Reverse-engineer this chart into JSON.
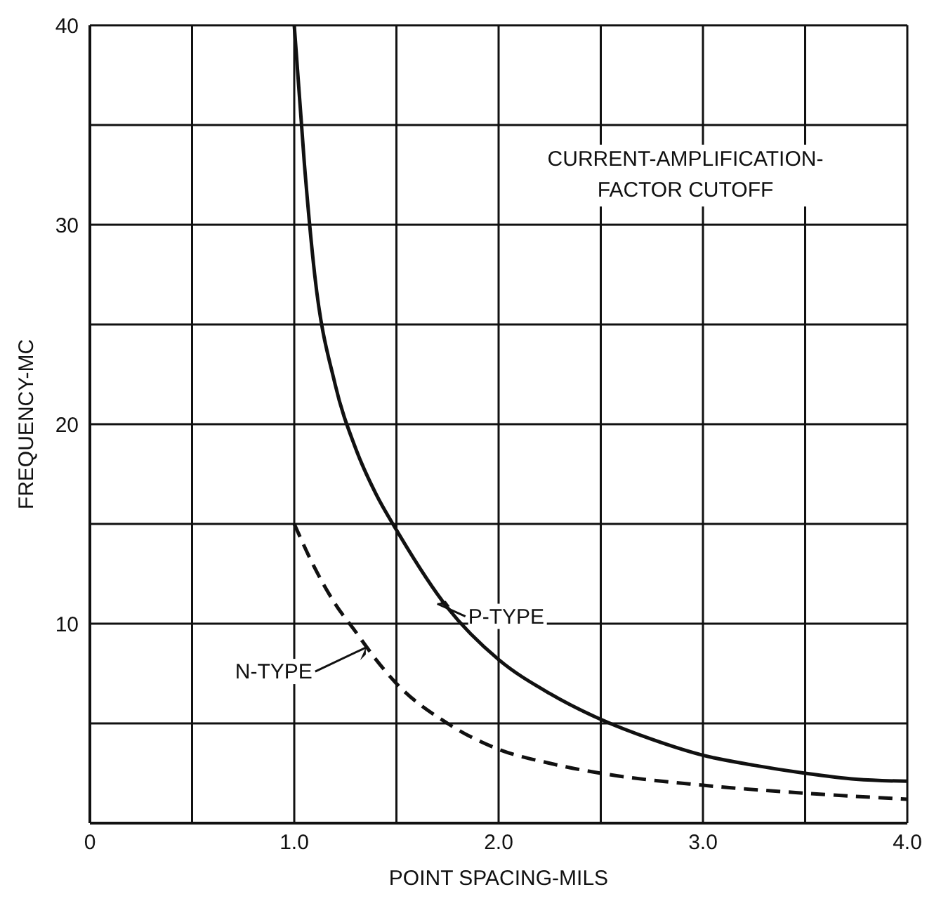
{
  "chart_data": {
    "type": "line",
    "xlabel": "POINT SPACING-MILS",
    "ylabel": "FREQUENCY-MC",
    "annotations": [
      "CURRENT-AMPLIFICATION-FACTOR CUTOFF",
      {
        "text": "P-TYPE",
        "x": 1.7,
        "y": 11
      },
      {
        "text": "N-TYPE",
        "x": 1.35,
        "y": 8.8
      }
    ],
    "series": [
      {
        "color": "#111111",
        "line_style": "solid",
        "x": [
          1.0,
          1.05,
          1.1,
          1.2,
          1.3,
          1.4,
          1.5,
          1.75,
          2.0,
          2.25,
          2.5,
          2.75,
          3.0,
          3.25,
          3.5,
          3.75,
          4.0
        ],
        "values": [
          40,
          33,
          27.5,
          22,
          18.8,
          16.5,
          14.7,
          10.8,
          8.2,
          6.5,
          5.2,
          4.2,
          3.4,
          2.9,
          2.5,
          2.2,
          2.1
        ]
      },
      {
        "color": "#111111",
        "line_style": "dashed",
        "x": [
          1.0,
          1.1,
          1.2,
          1.3,
          1.4,
          1.5,
          1.75,
          2.0,
          2.25,
          2.5,
          3.0,
          3.5,
          4.0
        ],
        "values": [
          15,
          12.8,
          11,
          9.6,
          8.2,
          7.0,
          5.0,
          3.7,
          3.0,
          2.5,
          1.9,
          1.5,
          1.2
        ]
      }
    ],
    "xlim": [
      0,
      4
    ],
    "xticks": [
      0,
      {
        "value": 0.5,
        "label": null
      },
      {
        "value": 1,
        "label": "1.0"
      },
      {
        "value": 1.5,
        "label": null
      },
      {
        "value": 2,
        "label": "2.0"
      },
      {
        "value": 2.5,
        "label": null
      },
      {
        "value": 3,
        "label": "3.0"
      },
      {
        "value": 3.5,
        "label": null
      },
      {
        "value": 4,
        "label": "4.0"
      }
    ],
    "ylim": [
      0,
      40
    ],
    "yticks": [
      {
        "value": 0,
        "label": null
      },
      {
        "value": 5,
        "label": null
      },
      10,
      {
        "value": 15,
        "label": null
      },
      20,
      {
        "value": 25,
        "label": null
      },
      30,
      {
        "value": 35,
        "label": null
      },
      40
    ],
    "grid": true,
    "marker": "none"
  }
}
